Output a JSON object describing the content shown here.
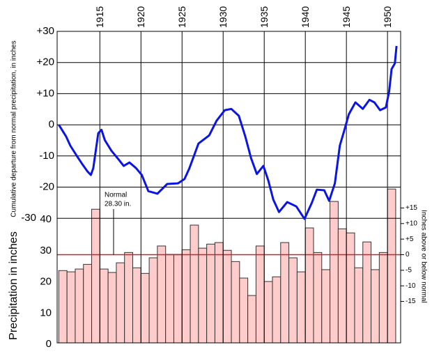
{
  "chart_data": [
    {
      "type": "line",
      "y_label": "Cumulative departure from normal precipitation, in inches",
      "xlim": [
        1909.8,
        1951.6
      ],
      "xticks": [
        1915,
        1920,
        1925,
        1930,
        1935,
        1940,
        1945,
        1950
      ],
      "ylim": [
        -70,
        30
      ],
      "yticks": [
        {
          "value": 30,
          "label": "+30"
        },
        {
          "value": 20,
          "label": "+20"
        },
        {
          "value": 10,
          "label": "+10"
        },
        0,
        -10,
        -20,
        -30
      ],
      "grid": true,
      "color": "#0a14e6",
      "x": [
        1910.0,
        1910.9,
        1911.4,
        1912.2,
        1912.9,
        1913.5,
        1913.9,
        1914.2,
        1914.8,
        1915.2,
        1915.6,
        1916.4,
        1917.3,
        1917.9,
        1918.6,
        1919.4,
        1920.1,
        1920.9,
        1922.0,
        1923.2,
        1924.5,
        1925.3,
        1925.9,
        1927.0,
        1928.3,
        1929.2,
        1930.2,
        1931.0,
        1931.9,
        1932.7,
        1933.4,
        1934.1,
        1934.9,
        1935.5,
        1936.1,
        1936.8,
        1937.8,
        1938.9,
        1939.9,
        1940.8,
        1941.4,
        1942.3,
        1942.9,
        1943.6,
        1944.2,
        1944.7,
        1945.3,
        1946.1,
        1947.0,
        1947.8,
        1948.4,
        1949.1,
        1949.8,
        1950.2,
        1950.5,
        1950.9,
        1951.1
      ],
      "values": [
        0,
        -3.8,
        -6.7,
        -10,
        -12.8,
        -15,
        -16.1,
        -13.9,
        -2.7,
        -1.6,
        -4.9,
        -8.3,
        -11.2,
        -13.2,
        -12.1,
        -13.9,
        -16.1,
        -21.3,
        -22.1,
        -19,
        -18.8,
        -17.4,
        -13.9,
        -6,
        -3.4,
        1.3,
        4.7,
        5.1,
        2.9,
        -3.8,
        -10.7,
        -15.8,
        -13.2,
        -17.9,
        -24,
        -28,
        -24.8,
        -26.2,
        -30.2,
        -25,
        -20.8,
        -21,
        -24.4,
        -18.8,
        -6.7,
        -2.2,
        3.4,
        7.2,
        5.1,
        8,
        7.2,
        4.7,
        5.6,
        10.7,
        17.9,
        19.7,
        25.3
      ]
    },
    {
      "type": "bar",
      "y_label": "Precipitation in inches",
      "y2_label": "Inches above or below normal",
      "ylim": [
        0,
        100
      ],
      "yticks": [
        0,
        10,
        20,
        30,
        40
      ],
      "y2lim": [
        -28.3,
        71.7
      ],
      "y2ticks": [
        {
          "value": 15,
          "label": "+15"
        },
        {
          "value": 10,
          "label": "+10"
        },
        {
          "value": 5,
          "label": "+5"
        },
        0,
        -5,
        -10,
        -15
      ],
      "normal": 28.3,
      "annotation": [
        "Normal",
        "28.30 in."
      ],
      "normal_color": "#cc2222",
      "color": "#ffcccc",
      "x": [
        1911,
        1912,
        1913,
        1914,
        1915,
        1916,
        1917,
        1918,
        1919,
        1920,
        1921,
        1922,
        1923,
        1924,
        1925,
        1926,
        1927,
        1928,
        1929,
        1930,
        1931,
        1932,
        1933,
        1934,
        1935,
        1936,
        1937,
        1938,
        1939,
        1940,
        1941,
        1942,
        1943,
        1944,
        1945,
        1946,
        1947,
        1948,
        1949,
        1950,
        1951
      ],
      "values": [
        23.2,
        22.8,
        23.7,
        25.2,
        42.9,
        23.7,
        22.6,
        25.7,
        29.0,
        24.1,
        22.3,
        27.3,
        31.1,
        28.4,
        28.4,
        29.9,
        37.8,
        30.4,
        31.7,
        32.2,
        29.7,
        26.1,
        20.8,
        15.2,
        31.1,
        19.7,
        21.2,
        32.2,
        27.3,
        22.8,
        36.9,
        29.0,
        23.5,
        45.4,
        36.6,
        35.3,
        24.1,
        32.4,
        23.5,
        29.0,
        49.4
      ]
    }
  ]
}
